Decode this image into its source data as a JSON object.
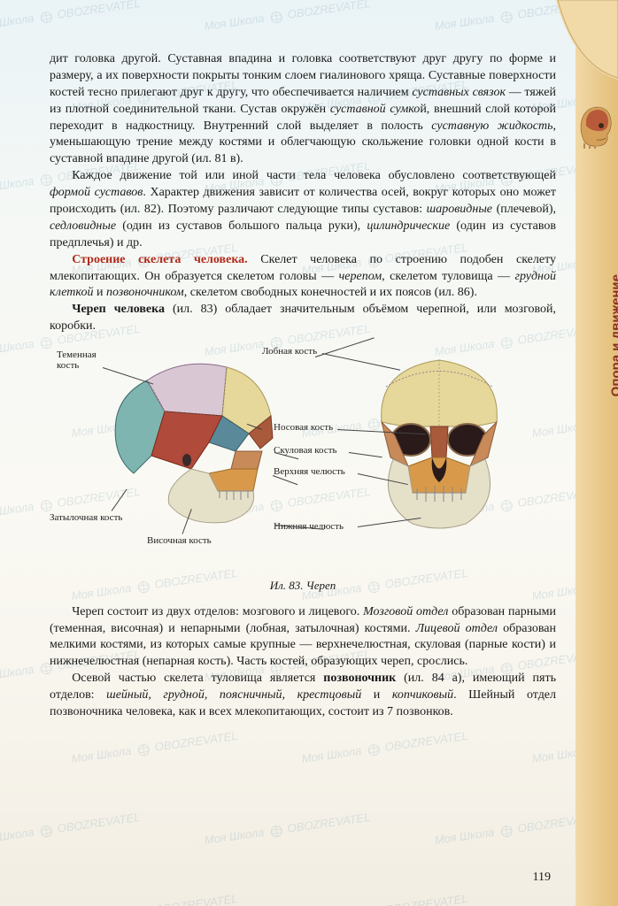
{
  "page_number": "119",
  "side_label": "Опора и движение",
  "watermark_texts": [
    "Моя Школа",
    "OBOZREVATEL"
  ],
  "paragraphs": {
    "p1": "дит головка другой. Суставная впадина и головка соответствуют друг другу по форме и размеру, а их поверхности покрыты тонким слоем гиалинового хряща. Суставные поверхности костей тесно прилегают друг к другу, что обеспечивается наличием суставных связок — тяжей из плотной соединительной ткани. Сустав окружён суставной сумкой, внешний слой которой переходит в надкостницу. Внутренний слой выделяет в полость суставную жидкость, уменьшающую трение между костями и облегчающую скольжение головки одной кости в суставной впадине другой (ил. 81 в).",
    "p2": "Каждое движение той или иной части тела человека обусловлено соответствующей формой суставов. Характер движения зависит от количества осей, вокруг которых оно может происходить (ил. 82). Поэтому различают следующие типы суставов: шаровидные (плечевой), седловидные (один из суставов большого пальца руки), цилиндрические (один из суставов предплечья) и др.",
    "p3_lead": "Строение скелета человека.",
    "p3": " Скелет человека по строению подобен скелету млекопитающих. Он образуется скелетом головы — черепом, скелетом туловища — грудной клеткой и позвоночником, скелетом свободных конечностей и их поясов (ил. 86).",
    "p4": "Череп человека (ил. 83) обладает значительным объёмом черепной, или мозговой, коробки.",
    "p5": "Череп состоит из двух отделов: мозгового и лицевого. Мозговой отдел образован парными (теменная, височная) и непарными (лобная, затылочная) костями. Лицевой отдел образован мелкими костями, из которых самые крупные — верхнечелюстная, скуловая (парные кости) и нижнечелюстная (непарная кость). Часть костей, образующих череп, срослись.",
    "p6": "Осевой частью скелета туловища является позвоночник (ил. 84 а), имеющий пять отделов: шейный, грудной, поясничный, крестцовый и копчиковый. Шейный отдел позвоночника человека, как и всех млекопитающих, состоит из 7 позвонков."
  },
  "figure": {
    "caption": "Ил. 83. Череп",
    "labels": {
      "parietal": "Теменная\nкость",
      "occipital": "Затылочная кость",
      "temporal": "Височная кость",
      "frontal": "Лобная кость",
      "nasal": "Носовая кость",
      "zygomatic": "Скуловая кость",
      "maxilla": "Верхняя челюсть",
      "mandible": "Нижняя челюсть"
    },
    "colors": {
      "parietal": "#d9c7d4",
      "frontal": "#e6d79a",
      "temporal": "#b04a3a",
      "occipital": "#7fb5b0",
      "sphenoid": "#5a8a9a",
      "maxilla": "#d89a4a",
      "mandible": "#e5e0c8",
      "zygomatic": "#c98a5a",
      "nasal": "#a85a3a"
    }
  },
  "side_skull_colors": {
    "skull": "#d4a05a",
    "brain": "#b85a3a"
  },
  "styles": {
    "body_fontsize": 14,
    "caption_fontsize": 13,
    "label_fontsize": 11,
    "accent_color": "#b02a1a",
    "sidebar_gradient": [
      "#f1d9a8",
      "#e3bf7a"
    ],
    "bg_gradient": [
      "#eaf3f6",
      "#f2ede2"
    ]
  }
}
